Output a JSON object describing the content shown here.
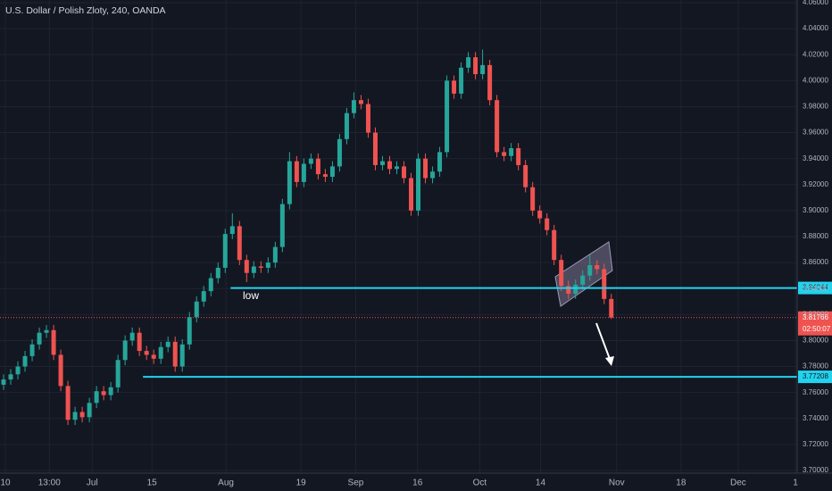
{
  "chart_data": {
    "type": "candlestick",
    "title": "U.S. Dollar / Polish Zloty, 240, OANDA",
    "up_color": "#26a69a",
    "down_color": "#ef5350",
    "grid": true,
    "open": [
      3.766,
      3.77,
      3.774,
      3.78,
      3.788,
      3.797,
      3.806,
      3.808,
      3.789,
      3.765,
      3.739,
      3.745,
      3.741,
      3.752,
      3.761,
      3.758,
      3.764,
      3.785,
      3.8,
      3.806,
      3.792,
      3.789,
      3.786,
      3.795,
      3.799,
      3.78,
      3.797,
      3.818,
      3.83,
      3.838,
      3.848,
      3.856,
      3.882,
      3.888,
      3.862,
      3.852,
      3.857,
      3.856,
      3.86,
      3.872,
      3.905,
      3.938,
      3.922,
      3.936,
      3.94,
      3.928,
      3.926,
      3.934,
      3.955,
      3.975,
      3.985,
      3.982,
      3.96,
      3.935,
      3.938,
      3.932,
      3.934,
      3.925,
      3.9,
      3.94,
      3.925,
      3.93,
      3.945,
      4.0,
      3.99,
      4.01,
      4.018,
      4.005,
      4.012,
      3.985,
      3.945,
      3.942,
      3.948,
      3.935,
      3.918,
      3.9,
      3.894,
      3.885,
      3.862,
      3.842,
      3.836,
      3.843,
      3.85,
      3.858,
      3.855,
      3.832
    ],
    "high": [
      3.774,
      3.778,
      3.784,
      3.792,
      3.801,
      3.81,
      3.812,
      3.812,
      3.793,
      3.769,
      3.749,
      3.749,
      3.756,
      3.765,
      3.765,
      3.768,
      3.789,
      3.804,
      3.81,
      3.81,
      3.796,
      3.793,
      3.799,
      3.803,
      3.803,
      3.801,
      3.822,
      3.834,
      3.842,
      3.852,
      3.86,
      3.886,
      3.898,
      3.892,
      3.866,
      3.861,
      3.861,
      3.864,
      3.876,
      3.909,
      3.945,
      3.942,
      3.94,
      3.944,
      3.944,
      3.932,
      3.938,
      3.959,
      3.979,
      3.991,
      3.989,
      3.986,
      3.964,
      3.942,
      3.942,
      3.938,
      3.938,
      3.929,
      3.944,
      3.944,
      3.934,
      3.949,
      4.004,
      4.004,
      4.014,
      4.022,
      4.022,
      4.024,
      4.016,
      3.989,
      3.949,
      3.952,
      3.952,
      3.939,
      3.922,
      3.904,
      3.898,
      3.889,
      3.866,
      3.846,
      3.847,
      3.854,
      3.866,
      3.862,
      3.859,
      3.836
    ],
    "low": [
      3.762,
      3.766,
      3.77,
      3.776,
      3.784,
      3.793,
      3.802,
      3.785,
      3.761,
      3.735,
      3.735,
      3.737,
      3.737,
      3.748,
      3.754,
      3.754,
      3.76,
      3.781,
      3.796,
      3.788,
      3.785,
      3.782,
      3.782,
      3.791,
      3.776,
      3.776,
      3.793,
      3.814,
      3.826,
      3.834,
      3.844,
      3.852,
      3.878,
      3.858,
      3.845,
      3.848,
      3.852,
      3.852,
      3.856,
      3.868,
      3.901,
      3.918,
      3.918,
      3.932,
      3.924,
      3.922,
      3.922,
      3.93,
      3.951,
      3.971,
      3.978,
      3.956,
      3.931,
      3.931,
      3.928,
      3.928,
      3.921,
      3.896,
      3.896,
      3.921,
      3.921,
      3.926,
      3.941,
      3.986,
      3.986,
      4.006,
      4.001,
      4.001,
      3.981,
      3.941,
      3.938,
      3.938,
      3.931,
      3.914,
      3.896,
      3.89,
      3.881,
      3.858,
      3.838,
      3.832,
      3.832,
      3.839,
      3.846,
      3.851,
      3.828,
      3.8165
    ],
    "close": [
      3.77,
      3.774,
      3.78,
      3.788,
      3.797,
      3.806,
      3.808,
      3.789,
      3.765,
      3.739,
      3.745,
      3.741,
      3.752,
      3.761,
      3.758,
      3.764,
      3.785,
      3.8,
      3.806,
      3.792,
      3.789,
      3.786,
      3.795,
      3.799,
      3.78,
      3.797,
      3.818,
      3.83,
      3.838,
      3.848,
      3.856,
      3.882,
      3.888,
      3.862,
      3.852,
      3.857,
      3.856,
      3.86,
      3.872,
      3.905,
      3.938,
      3.922,
      3.936,
      3.94,
      3.928,
      3.926,
      3.934,
      3.955,
      3.975,
      3.985,
      3.982,
      3.96,
      3.935,
      3.938,
      3.932,
      3.934,
      3.925,
      3.9,
      3.94,
      3.925,
      3.93,
      3.945,
      4.0,
      3.99,
      4.01,
      4.018,
      4.005,
      4.012,
      3.985,
      3.945,
      3.942,
      3.948,
      3.935,
      3.918,
      3.9,
      3.894,
      3.885,
      3.862,
      3.842,
      3.836,
      3.843,
      3.85,
      3.858,
      3.855,
      3.832,
      3.8177
    ],
    "xlim": [
      0,
      111.5
    ],
    "xticks": [
      {
        "value": 0.75,
        "label": "10"
      },
      {
        "value": 6.9,
        "label": "13:00"
      },
      {
        "value": 12.9,
        "label": "Jul"
      },
      {
        "value": 21.25,
        "label": "15"
      },
      {
        "value": 31.6,
        "label": "Aug"
      },
      {
        "value": 42.1,
        "label": "19"
      },
      {
        "value": 49.75,
        "label": "Sep"
      },
      {
        "value": 58.4,
        "label": "16"
      },
      {
        "value": 67.1,
        "label": "Oct"
      },
      {
        "value": 75.6,
        "label": "14"
      },
      {
        "value": 86.25,
        "label": "Nov"
      },
      {
        "value": 95.25,
        "label": "18"
      },
      {
        "value": 103.25,
        "label": "Dec"
      },
      {
        "value": 111.25,
        "label": "1"
      }
    ],
    "ylim": [
      3.7,
      4.06
    ],
    "yticks": [
      {
        "value": 3.7,
        "label": "3.70000"
      },
      {
        "value": 3.72,
        "label": "3.72000"
      },
      {
        "value": 3.74,
        "label": "3.74000"
      },
      {
        "value": 3.76,
        "label": "3.76000"
      },
      {
        "value": 3.78,
        "label": "3.78000"
      },
      {
        "value": 3.8,
        "label": "3.80000"
      },
      {
        "value": 3.82,
        "label": "3.82000"
      },
      {
        "value": 3.84,
        "label": "3.84000"
      },
      {
        "value": 3.86,
        "label": "3.86000"
      },
      {
        "value": 3.88,
        "label": "3.88000"
      },
      {
        "value": 3.9,
        "label": "3.90000"
      },
      {
        "value": 3.92,
        "label": "3.92000"
      },
      {
        "value": 3.94,
        "label": "3.94000"
      },
      {
        "value": 3.96,
        "label": "3.96000"
      },
      {
        "value": 3.98,
        "label": "3.98000"
      },
      {
        "value": 4.0,
        "label": "4.00000"
      },
      {
        "value": 4.02,
        "label": "4.02000"
      },
      {
        "value": 4.04,
        "label": "4.04000"
      },
      {
        "value": 4.06,
        "label": "4.06000"
      }
    ],
    "levels": [
      {
        "value": 3.84044,
        "label": "3.84044",
        "start": 32.25,
        "color": "#22d3ee"
      },
      {
        "value": 3.77208,
        "label": "3.77208",
        "start": 20,
        "color": "#22d3ee"
      }
    ],
    "last_price": {
      "value": 3.81766,
      "label": "3.81766",
      "countdown": "02:50:07",
      "color": "#ef5350"
    },
    "annotation": "low"
  }
}
